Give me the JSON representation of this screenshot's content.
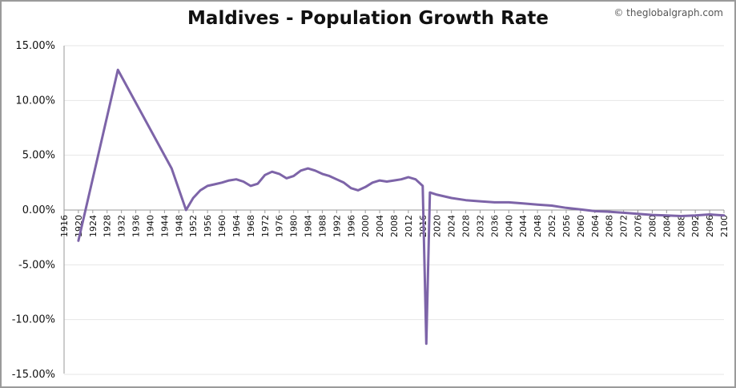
{
  "chart_data": {
    "type": "line",
    "title": "Maldives - Population Growth Rate",
    "credit": "© theglobalgraph.com",
    "xlabel": "",
    "ylabel": "",
    "xlim": [
      1916,
      2100
    ],
    "ylim": [
      -15,
      15
    ],
    "yticks": [
      {
        "value": 15,
        "label": "15.00%"
      },
      {
        "value": 10,
        "label": "10.00%"
      },
      {
        "value": 5,
        "label": "5.00%"
      },
      {
        "value": 0,
        "label": "0.00%"
      },
      {
        "value": -5,
        "label": "-5.00%"
      },
      {
        "value": -10,
        "label": "-10.00%"
      },
      {
        "value": -15,
        "label": "-15.00%"
      }
    ],
    "xtick_labels": [
      "1916",
      "1920",
      "1924",
      "1928",
      "1932",
      "1936",
      "1940",
      "1944",
      "1948",
      "1952",
      "1956",
      "1960",
      "1964",
      "1968",
      "1972",
      "1976",
      "1980",
      "1984",
      "1988",
      "1992",
      "1996",
      "2000",
      "2004",
      "2008",
      "2012",
      "2016",
      "2020",
      "2024",
      "2028",
      "2032",
      "2036",
      "2040",
      "2044",
      "2048",
      "2052",
      "2056",
      "2060",
      "2064",
      "2068",
      "2072",
      "2076",
      "2080",
      "2084",
      "2088",
      "2092",
      "2096",
      "2100"
    ],
    "series": [
      {
        "name": "Population Growth Rate",
        "color": "#7d64a8",
        "x": [
          1920,
          1931,
          1946,
          1950,
          1952,
          1954,
          1956,
          1958,
          1960,
          1962,
          1964,
          1966,
          1968,
          1970,
          1972,
          1974,
          1976,
          1978,
          1980,
          1982,
          1984,
          1986,
          1988,
          1990,
          1992,
          1994,
          1996,
          1998,
          2000,
          2002,
          2004,
          2006,
          2008,
          2010,
          2012,
          2014,
          2016,
          2017,
          2018,
          2020,
          2024,
          2028,
          2032,
          2036,
          2040,
          2044,
          2048,
          2052,
          2056,
          2060,
          2064,
          2068,
          2072,
          2076,
          2080,
          2084,
          2088,
          2092,
          2096,
          2100
        ],
        "values": [
          -2.8,
          12.8,
          3.8,
          0.0,
          1.1,
          1.8,
          2.2,
          2.35,
          2.5,
          2.7,
          2.8,
          2.6,
          2.2,
          2.4,
          3.2,
          3.5,
          3.3,
          2.9,
          3.1,
          3.6,
          3.8,
          3.6,
          3.3,
          3.1,
          2.8,
          2.5,
          2.0,
          1.8,
          2.1,
          2.5,
          2.7,
          2.6,
          2.7,
          2.8,
          3.0,
          2.8,
          2.2,
          -12.2,
          1.6,
          1.4,
          1.1,
          0.9,
          0.8,
          0.7,
          0.7,
          0.6,
          0.5,
          0.4,
          0.2,
          0.05,
          -0.1,
          -0.15,
          -0.25,
          -0.35,
          -0.45,
          -0.5,
          -0.55,
          -0.5,
          -0.4,
          -0.5
        ]
      }
    ]
  }
}
